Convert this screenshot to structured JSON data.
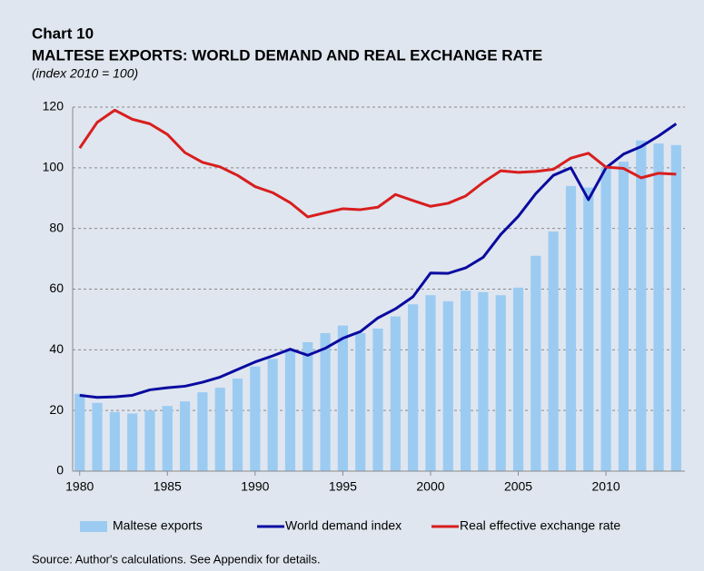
{
  "chart_data": {
    "type": "bar",
    "label": "Chart 10",
    "title": "MALTESE EXPORTS: WORLD DEMAND AND REAL EXCHANGE RATE",
    "subtitle": "(index 2010 = 100)",
    "source": "Source: Author's calculations. See Appendix for details.",
    "x": [
      1980,
      1981,
      1982,
      1983,
      1984,
      1985,
      1986,
      1987,
      1988,
      1989,
      1990,
      1991,
      1992,
      1993,
      1994,
      1995,
      1996,
      1997,
      1998,
      1999,
      2000,
      2001,
      2002,
      2003,
      2004,
      2005,
      2006,
      2007,
      2008,
      2009,
      2010,
      2011,
      2012,
      2013,
      2014
    ],
    "xlim": [
      1979.6,
      2014.5
    ],
    "xticks": [
      1980,
      1985,
      1990,
      1995,
      2000,
      2005,
      2010
    ],
    "ylim": [
      0,
      120
    ],
    "yticks": [
      0,
      20,
      40,
      60,
      80,
      100,
      120
    ],
    "grid": true,
    "legend": "bottom",
    "series": [
      {
        "name": "Maltese exports",
        "type": "bar",
        "color": "#9ccbf2",
        "values": [
          25.5,
          22.5,
          19.5,
          19,
          20,
          21.5,
          23,
          26,
          27.5,
          30.5,
          34.5,
          37,
          40,
          42.5,
          45.5,
          48,
          45.5,
          47,
          51,
          55,
          58,
          56,
          59.5,
          59,
          58,
          60.5,
          71,
          79,
          94,
          93.5,
          100,
          102,
          109,
          108,
          107.5
        ]
      },
      {
        "name": "World demand index",
        "type": "line",
        "color": "#0a0aa0",
        "values": [
          25,
          24.3,
          24.5,
          25,
          26.8,
          27.5,
          28,
          29.3,
          31,
          33.5,
          36,
          38,
          40.2,
          38.2,
          40.5,
          43.8,
          46,
          50.5,
          53.5,
          57.5,
          65.3,
          65.2,
          67,
          70.5,
          78,
          84,
          91.5,
          97.5,
          100,
          89.5,
          100,
          104.5,
          107,
          110.5,
          114.5
        ]
      },
      {
        "name": "Real effective exchange rate",
        "type": "line",
        "color": "#d81e1e",
        "values": [
          106.5,
          115,
          119,
          116,
          114.5,
          111,
          105,
          101.8,
          100.3,
          97.5,
          93.8,
          91.8,
          88.5,
          83.8,
          85.2,
          86.5,
          86.2,
          87,
          91.2,
          89.2,
          87.3,
          88.3,
          90.7,
          95.2,
          99,
          98.5,
          98.8,
          99.5,
          103.2,
          104.8,
          100.2,
          99.8,
          96.7,
          98.2,
          97.9
        ]
      }
    ]
  }
}
